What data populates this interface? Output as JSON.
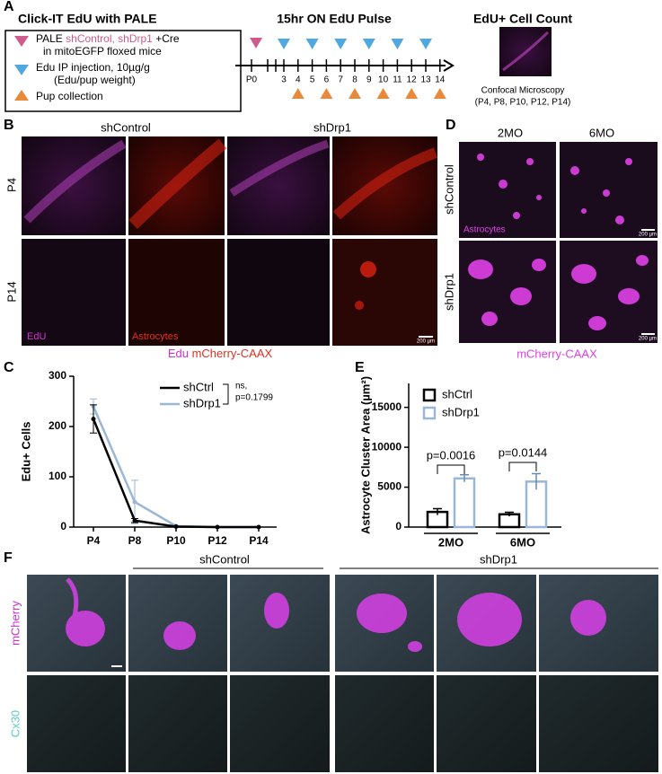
{
  "panels": {
    "A": {
      "letter": "A",
      "box_title": "Click-IT EdU with PALE",
      "legend": {
        "pale": "PALE",
        "constructs": "shControl, shDrp1",
        "cre": "+Cre",
        "mice": "in mitoEGFP floxed mice",
        "edu": "Edu IP injection, 10µg/g",
        "edu_weight": "(Edu/pup weight)",
        "pup": "Pup collection"
      },
      "timeline": {
        "title": "15hr ON EdU Pulse",
        "start": "P0",
        "days": [
          3,
          4,
          5,
          6,
          7,
          8,
          9,
          10,
          11,
          12,
          13,
          14
        ]
      },
      "count": {
        "title": "EdU+ Cell Count",
        "caption": "Confocal Microscopy",
        "caption2": "(P4, P8, P10, P12, P14)"
      }
    },
    "B": {
      "letter": "B",
      "groups": [
        "shControl",
        "shDrp1"
      ],
      "rows": [
        "P4",
        "P14"
      ],
      "stain1": "EdU",
      "stain2": "Astrocytes",
      "scale": "200 µm",
      "caption1": "Edu",
      "caption2": "mCherry-CAAX"
    },
    "C": {
      "letter": "C"
    },
    "D": {
      "letter": "D",
      "columns": [
        "2MO",
        "6MO"
      ],
      "rows": [
        "shControl",
        "shDrp1"
      ],
      "stain": "Astrocytes",
      "scale": "200 µm",
      "caption": "mCherry-CAAX"
    },
    "E": {
      "letter": "E"
    },
    "F": {
      "letter": "F",
      "groups": [
        "shControl",
        "shDrp1"
      ],
      "rows": [
        "mCherry",
        "Cx30"
      ]
    }
  },
  "chart_data": [
    {
      "type": "line",
      "categories": [
        "P4",
        "P8",
        "P10",
        "P12",
        "P14"
      ],
      "ylabel": "Edu+ Cells",
      "ylim": [
        0,
        300
      ],
      "yticks": [
        0,
        100,
        200,
        300
      ],
      "series": [
        {
          "name": "shCtrl",
          "color": "#000000",
          "values": [
            215,
            13,
            1,
            0,
            0
          ],
          "errors": [
            28,
            4,
            1,
            0,
            0
          ]
        },
        {
          "name": "shDrp1",
          "color": "#9ab7d6",
          "values": [
            240,
            50,
            2,
            0,
            0
          ],
          "errors": [
            15,
            43,
            1,
            0,
            0
          ]
        }
      ],
      "annotations": [
        "ns,",
        "p=0.1799"
      ]
    },
    {
      "type": "bar",
      "categories": [
        "2MO",
        "6MO"
      ],
      "ylabel": "Astrocyte Cluster Area (µm²)",
      "ylim": [
        0,
        18000
      ],
      "yticks": [
        0,
        5000,
        10000,
        15000
      ],
      "series": [
        {
          "name": "shCtrl",
          "color": "#000000",
          "values": [
            1900,
            1600
          ],
          "errors": [
            400,
            250
          ]
        },
        {
          "name": "shDrp1",
          "color": "#9ab7d6",
          "values": [
            6100,
            5700
          ],
          "errors": [
            450,
            1000
          ]
        }
      ],
      "annotations": [
        "p=0.0016",
        "p=0.0144"
      ]
    }
  ]
}
